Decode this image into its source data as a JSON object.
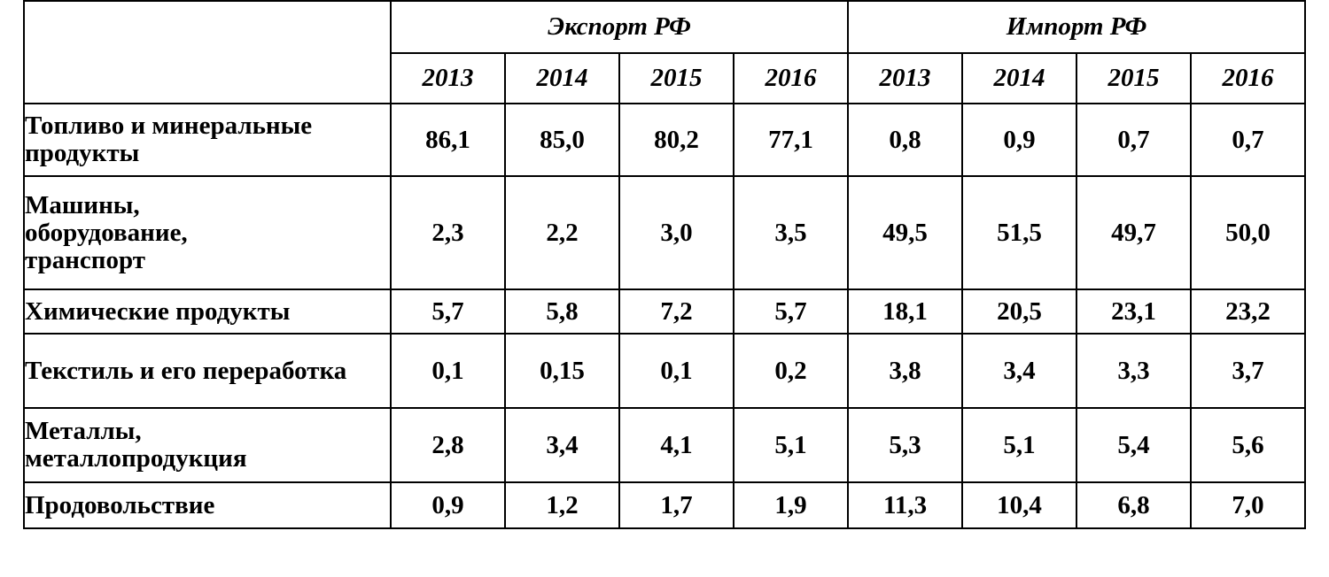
{
  "table": {
    "groups": {
      "export": "Экспорт РФ",
      "import": "Импорт РФ"
    },
    "years": [
      "2013",
      "2014",
      "2015",
      "2016"
    ],
    "rows": [
      {
        "label": "Топливо и минеральные продукты",
        "export": [
          "86,1",
          "85,0",
          "80,2",
          "77,1"
        ],
        "import": [
          "0,8",
          "0,9",
          "0,7",
          "0,7"
        ]
      },
      {
        "label": "Машины, оборудование, транспорт",
        "export": [
          "2,3",
          "2,2",
          "3,0",
          "3,5"
        ],
        "import": [
          "49,5",
          "51,5",
          "49,7",
          "50,0"
        ]
      },
      {
        "label": "Химические продукты",
        "export": [
          "5,7",
          "5,8",
          "7,2",
          "5,7"
        ],
        "import": [
          "18,1",
          "20,5",
          "23,1",
          "23,2"
        ]
      },
      {
        "label": "Текстиль и его переработка",
        "export": [
          "0,1",
          "0,15",
          "0,1",
          "0,2"
        ],
        "import": [
          "3,8",
          "3,4",
          "3,3",
          "3,7"
        ]
      },
      {
        "label": "Металлы, металлопродукция",
        "export": [
          "2,8",
          "3,4",
          "4,1",
          "5,1"
        ],
        "import": [
          "5,3",
          "5,1",
          "5,4",
          "5,6"
        ]
      },
      {
        "label": "Продовольствие",
        "export": [
          "0,9",
          "1,2",
          "1,7",
          "1,9"
        ],
        "import": [
          "11,3",
          "10,4",
          "6,8",
          "7,0"
        ]
      }
    ]
  }
}
